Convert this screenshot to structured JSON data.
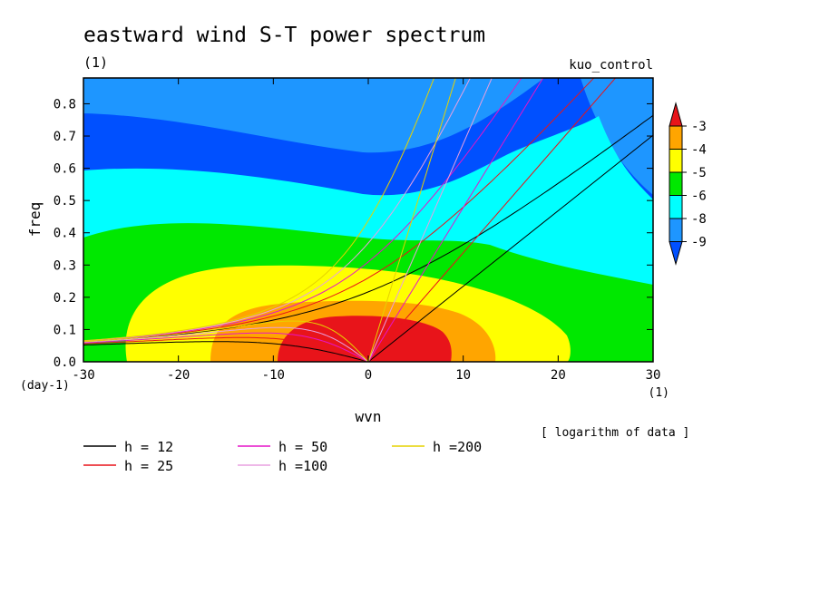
{
  "chart_data": {
    "type": "heatmap",
    "title": "eastward wind S-T power spectrum",
    "subtitle_left": "(1)",
    "subtitle_right": "kuo_control",
    "xlabel": "wvn",
    "ylabel": "freq",
    "x_unit": "(1)",
    "y_unit": "(day-1)",
    "note": "[ logarithm of data ]",
    "xlim": [
      -30,
      30
    ],
    "ylim": [
      0,
      0.88
    ],
    "x_ticks": [
      -30,
      -20,
      -10,
      0,
      10,
      20,
      30
    ],
    "x_tick_labels": [
      "-30",
      "-20",
      "-10",
      "0",
      "10",
      "20",
      "30"
    ],
    "y_ticks": [
      0,
      0.1,
      0.2,
      0.3,
      0.4,
      0.5,
      0.6,
      0.7,
      0.8
    ],
    "y_tick_labels": [
      "0.0",
      "0.1",
      "0.2",
      "0.3",
      "0.4",
      "0.5",
      "0.6",
      "0.7",
      "0.8"
    ],
    "colorbar": {
      "labels": [
        "-3",
        "-4",
        "-5",
        "-6",
        "-8",
        "-9"
      ],
      "colors": [
        "#e8141a",
        "#ffa500",
        "#ffff00",
        "#00e800",
        "#00ffff",
        "#1e96ff",
        "#0050ff"
      ]
    },
    "series": [
      {
        "name": "h = 12",
        "h": 12,
        "color": "#000000"
      },
      {
        "name": "h = 25",
        "h": 25,
        "color": "#e8141a"
      },
      {
        "name": "h = 50",
        "h": 50,
        "color": "#e614c8"
      },
      {
        "name": "h =100",
        "h": 100,
        "color": "#e8a0e0"
      },
      {
        "name": "h =200",
        "h": 200,
        "color": "#e6d200"
      }
    ]
  }
}
